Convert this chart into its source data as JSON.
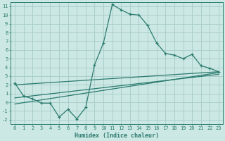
{
  "xlabel": "Humidex (Indice chaleur)",
  "ylabel": "",
  "bg_color": "#cce8e4",
  "grid_color": "#aacfcb",
  "line_color": "#2a7a6e",
  "xlim": [
    -0.5,
    23.5
  ],
  "ylim": [
    -2.5,
    11.5
  ],
  "xticks": [
    0,
    1,
    2,
    3,
    4,
    5,
    6,
    7,
    8,
    9,
    10,
    11,
    12,
    13,
    14,
    15,
    16,
    17,
    18,
    19,
    20,
    21,
    22,
    23
  ],
  "yticks": [
    -2,
    -1,
    0,
    1,
    2,
    3,
    4,
    5,
    6,
    7,
    8,
    9,
    10,
    11
  ],
  "main_line_x": [
    0,
    1,
    2,
    3,
    4,
    5,
    6,
    7,
    8,
    9,
    10,
    11,
    12,
    13,
    14,
    15,
    16,
    17,
    18,
    19,
    20,
    21,
    22,
    23
  ],
  "main_line_y": [
    2.2,
    0.7,
    0.4,
    -0.1,
    -0.1,
    -1.7,
    -0.8,
    -1.9,
    -0.6,
    4.3,
    6.8,
    11.2,
    10.6,
    10.1,
    10.0,
    8.8,
    6.8,
    5.6,
    5.4,
    5.0,
    5.5,
    4.2,
    3.9,
    3.5
  ],
  "trend_line1_x": [
    0,
    23
  ],
  "trend_line1_y": [
    2.0,
    3.5
  ],
  "trend_line2_x": [
    0,
    23
  ],
  "trend_line2_y": [
    0.5,
    3.2
  ],
  "trend_line3_x": [
    0,
    23
  ],
  "trend_line3_y": [
    -0.2,
    3.4
  ]
}
